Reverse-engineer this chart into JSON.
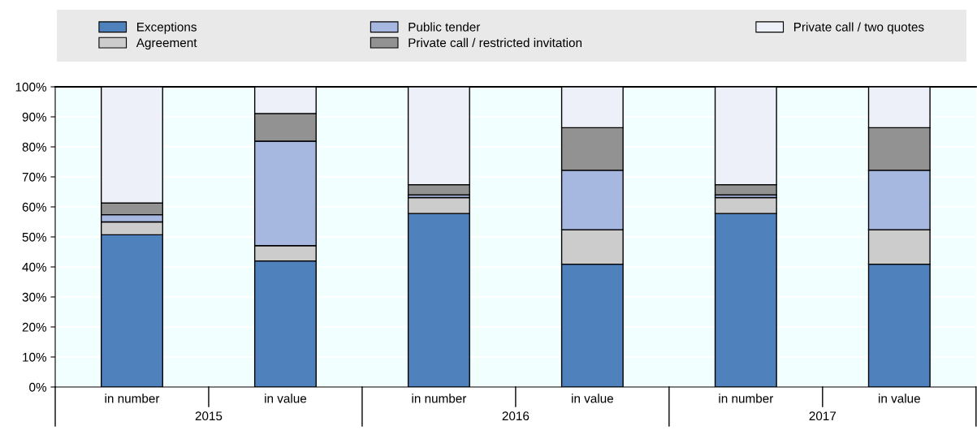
{
  "chart_data": {
    "type": "bar",
    "stacked": true,
    "legend": "top",
    "grid": "y",
    "categories": [
      "in number",
      "in value",
      "in number",
      "in value",
      "in number",
      "in value"
    ],
    "annotations": [
      "2015",
      "2016",
      "2017"
    ],
    "series": [
      {
        "name": "Exceptions",
        "color": "#4f81bd",
        "values": [
          50.7,
          42.0,
          57.8,
          40.9,
          57.8,
          40.9
        ]
      },
      {
        "name": "Agreement",
        "color": "#cccccc",
        "values": [
          4.3,
          5.1,
          5.3,
          11.5,
          5.3,
          11.5
        ]
      },
      {
        "name": "Public tender",
        "color": "#a6b7e0",
        "values": [
          2.4,
          34.8,
          0.9,
          19.8,
          0.9,
          19.8
        ]
      },
      {
        "name": "Private call / restricted invitation",
        "color": "#929292",
        "values": [
          3.9,
          9.2,
          3.4,
          14.2,
          3.4,
          14.2
        ]
      },
      {
        "name": "Private call / two quotes",
        "color": "#edf0f8",
        "values": [
          38.7,
          8.9,
          32.6,
          13.6,
          32.6,
          13.6
        ]
      }
    ],
    "ylim": [
      0,
      100
    ],
    "yticks": [
      {
        "value": 0,
        "label": "0%"
      },
      {
        "value": 10,
        "label": "10%"
      },
      {
        "value": 20,
        "label": "20%"
      },
      {
        "value": 30,
        "label": "30%"
      },
      {
        "value": 40,
        "label": "40%"
      },
      {
        "value": 50,
        "label": "50%"
      },
      {
        "value": 60,
        "label": "60%"
      },
      {
        "value": 70,
        "label": "70%"
      },
      {
        "value": 80,
        "label": "80%"
      },
      {
        "value": 90,
        "label": "90%"
      },
      {
        "value": 100,
        "label": "100%"
      }
    ]
  }
}
